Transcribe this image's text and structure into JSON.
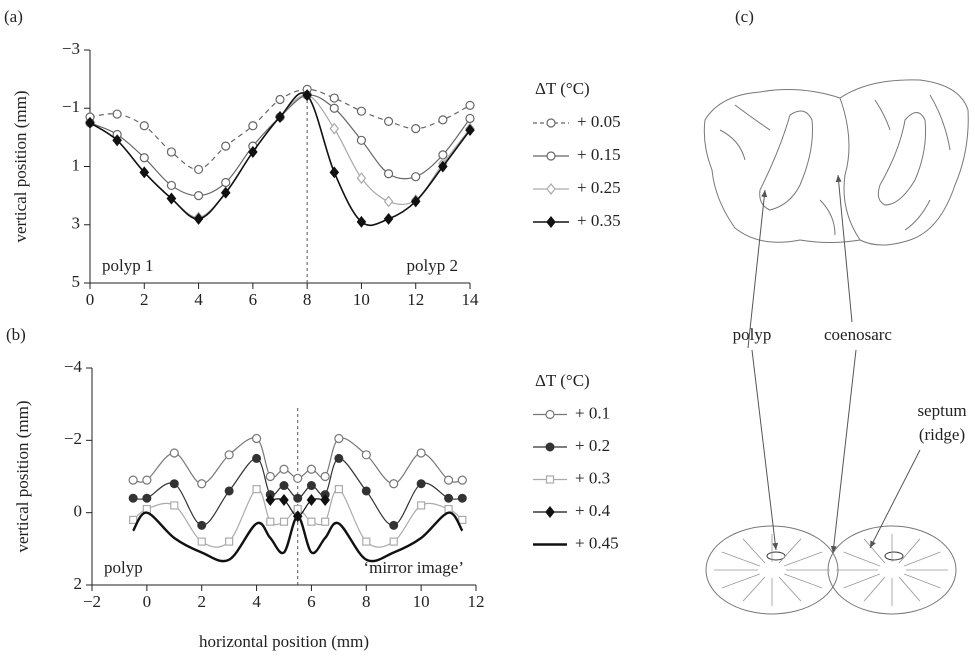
{
  "chart_data": [
    {
      "type": "line",
      "panel_label": "(a)",
      "y_label": "vertical position (mm)",
      "legend_title": "ΔT (°C)",
      "annotations": [
        "polyp 1",
        "polyp 2"
      ],
      "vline": 8,
      "x": [
        0,
        1,
        2,
        3,
        4,
        5,
        6,
        7,
        8,
        9,
        10,
        11,
        12,
        13,
        14
      ],
      "xlim": [
        0,
        14
      ],
      "xticks": [
        0,
        2,
        4,
        6,
        8,
        10,
        12,
        14
      ],
      "ylim": [
        5,
        -3
      ],
      "yticks": [
        {
          "value": -3,
          "label": "−3"
        },
        {
          "value": -1,
          "label": "−1"
        },
        1,
        3,
        5
      ],
      "series": [
        {
          "name": "+ 0.05",
          "color": "#666666",
          "dash": true,
          "marker": "circle-open",
          "width": 1.2,
          "values": [
            -0.7,
            -0.8,
            -0.4,
            0.5,
            1.1,
            0.3,
            -0.4,
            -1.3,
            -1.65,
            -1.35,
            -0.9,
            -0.55,
            -0.3,
            -0.6,
            -1.1
          ]
        },
        {
          "name": "+ 0.15",
          "color": "#666666",
          "dash": false,
          "marker": "circle-open",
          "width": 1.2,
          "values": [
            -0.5,
            -0.1,
            0.7,
            1.65,
            2.0,
            1.55,
            0.3,
            -0.7,
            -1.45,
            -1.0,
            0.1,
            1.25,
            1.35,
            0.6,
            -0.65
          ]
        },
        {
          "name": "+ 0.25",
          "color": "#aaaaaa",
          "dash": false,
          "marker": "diamond-open",
          "width": 1.2,
          "values": [
            -0.5,
            0.1,
            1.2,
            2.1,
            2.75,
            1.9,
            0.5,
            -0.7,
            -1.45,
            -0.3,
            1.4,
            2.2,
            2.15,
            0.9,
            -0.3
          ]
        },
        {
          "name": "+ 0.35",
          "color": "#111111",
          "dash": false,
          "marker": "diamond",
          "width": 1.6,
          "values": [
            -0.5,
            0.1,
            1.2,
            2.1,
            2.8,
            1.9,
            0.5,
            -0.7,
            -1.45,
            1.2,
            2.9,
            2.8,
            2.2,
            1.0,
            -0.25
          ]
        }
      ]
    },
    {
      "type": "line",
      "panel_label": "(b)",
      "y_label": "vertical position (mm)",
      "x_label": "horizontal position (mm)",
      "legend_title": "ΔT (°C)",
      "annotations": [
        "polyp",
        "‘mirror image’"
      ],
      "vline": 5.5,
      "x": [
        -0.5,
        0,
        1,
        2,
        3,
        4,
        4.5,
        5,
        5.5,
        6,
        6.5,
        7,
        8,
        9,
        10,
        11,
        11.5
      ],
      "xlim": [
        -2,
        12
      ],
      "xticks": [
        {
          "value": -2,
          "label": "−2"
        },
        0,
        2,
        4,
        6,
        8,
        10,
        12
      ],
      "ylim": [
        2,
        -4
      ],
      "yticks": [
        {
          "value": -4,
          "label": "−4"
        },
        {
          "value": -2,
          "label": "−2"
        },
        0,
        2
      ],
      "series": [
        {
          "name": "+ 0.1",
          "color": "#777777",
          "dash": false,
          "marker": "circle-open",
          "width": 1.2,
          "values": [
            -0.9,
            -0.9,
            -1.65,
            -0.8,
            -1.6,
            -2.05,
            -1.0,
            -1.2,
            -0.95,
            -1.2,
            -1.0,
            -2.05,
            -1.6,
            -0.8,
            -1.65,
            -0.9,
            -0.9
          ]
        },
        {
          "name": "+ 0.2",
          "color": "#333333",
          "dash": false,
          "marker": "circle",
          "width": 1.2,
          "values": [
            -0.4,
            -0.4,
            -0.8,
            0.35,
            -0.6,
            -1.5,
            -0.5,
            -0.75,
            -0.4,
            -0.75,
            -0.5,
            -1.5,
            -0.6,
            0.35,
            -0.8,
            -0.4,
            -0.4
          ]
        },
        {
          "name": "+ 0.3",
          "color": "#aaaaaa",
          "dash": false,
          "marker": "square-open",
          "width": 1.2,
          "values": [
            0.2,
            -0.1,
            -0.2,
            0.8,
            0.8,
            -0.65,
            0.25,
            0.25,
            -0.1,
            0.25,
            0.25,
            -0.65,
            0.8,
            0.8,
            -0.2,
            -0.1,
            0.2
          ]
        },
        {
          "name": "+ 0.4",
          "color": "#111111",
          "dash": false,
          "marker": "diamond",
          "width": 1.2,
          "values": [
            null,
            null,
            null,
            null,
            null,
            null,
            -0.35,
            -0.35,
            0.1,
            -0.35,
            -0.35,
            null,
            null,
            null,
            null,
            null,
            null
          ]
        },
        {
          "name": "+ 0.45",
          "color": "#111111",
          "dash": false,
          "marker": "none",
          "width": 2.4,
          "values": [
            0.5,
            0.0,
            0.7,
            1.1,
            1.3,
            0.3,
            0.7,
            1.1,
            0.1,
            1.1,
            0.7,
            0.3,
            1.3,
            1.1,
            0.7,
            0.0,
            0.5
          ]
        }
      ]
    }
  ],
  "diagram": {
    "panel_label": "(c)",
    "labels": [
      "polyp",
      "coenosarc",
      "septum",
      "(ridge)"
    ]
  }
}
